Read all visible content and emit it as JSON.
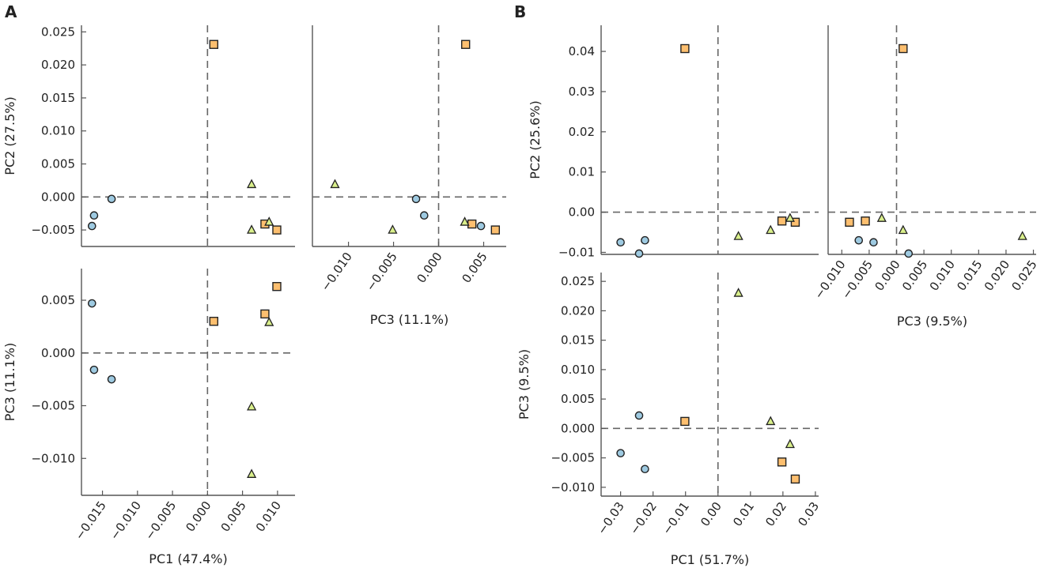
{
  "figure": {
    "panel_letters": [
      "A",
      "B"
    ]
  },
  "colors": {
    "circle_fill": "#9ecae1",
    "square_fill": "#fdbf6f",
    "triangle_fill": "#d9ef8b",
    "marker_edge": "#222222",
    "axis": "#555555",
    "zero_line": "#666666"
  },
  "chart_data": [
    {
      "id": "A1",
      "panel": "A",
      "type": "scatter",
      "title": "",
      "xlabel": "",
      "ylabel": "PC2 (27.5%)",
      "xlim": [
        -0.018,
        0.0125
      ],
      "ylim": [
        -0.0075,
        0.026
      ],
      "xticks": [],
      "xtick_labels": [],
      "yticks": [
        -0.005,
        0.0,
        0.005,
        0.01,
        0.015,
        0.02,
        0.025
      ],
      "ytick_labels": [
        "-0.005",
        "0.000",
        "0.005",
        "0.010",
        "0.015",
        "0.020",
        "0.025"
      ],
      "grid": false,
      "legend": "none",
      "series": [
        {
          "name": "circle",
          "marker": "circle",
          "points": [
            [
              -0.0137,
              -0.0003
            ],
            [
              -0.0162,
              -0.0028
            ],
            [
              -0.0165,
              -0.0044
            ]
          ]
        },
        {
          "name": "square",
          "marker": "square",
          "points": [
            [
              0.0009,
              0.0231
            ],
            [
              0.0082,
              -0.0041
            ],
            [
              0.0099,
              -0.005
            ]
          ]
        },
        {
          "name": "triangle",
          "marker": "triangle",
          "points": [
            [
              0.0063,
              0.0019
            ],
            [
              0.0063,
              -0.005
            ],
            [
              0.0088,
              -0.0038
            ]
          ]
        }
      ]
    },
    {
      "id": "A2",
      "panel": "A",
      "type": "scatter",
      "title": "",
      "xlabel": "PC3 (11.1%)",
      "ylabel": "",
      "xlim": [
        -0.014,
        0.0075
      ],
      "ylim": [
        -0.0075,
        0.026
      ],
      "xticks": [
        -0.01,
        -0.005,
        0.0,
        0.005
      ],
      "xtick_labels": [
        "-0.010",
        "-0.005",
        "0.000",
        "0.005"
      ],
      "yticks": [],
      "ytick_labels": [],
      "grid": false,
      "legend": "none",
      "series": [
        {
          "name": "circle",
          "marker": "circle",
          "points": [
            [
              -0.0025,
              -0.0003
            ],
            [
              -0.0016,
              -0.0028
            ],
            [
              0.0047,
              -0.0044
            ]
          ]
        },
        {
          "name": "square",
          "marker": "square",
          "points": [
            [
              0.003,
              0.0231
            ],
            [
              0.0037,
              -0.0041
            ],
            [
              0.0063,
              -0.005
            ]
          ]
        },
        {
          "name": "triangle",
          "marker": "triangle",
          "points": [
            [
              -0.0115,
              0.0019
            ],
            [
              -0.0051,
              -0.005
            ],
            [
              0.0029,
              -0.0038
            ]
          ]
        }
      ]
    },
    {
      "id": "A3",
      "panel": "A",
      "type": "scatter",
      "title": "",
      "xlabel": "PC1 (47.4%)",
      "ylabel": "PC3 (11.1%)",
      "xlim": [
        -0.018,
        0.0125
      ],
      "ylim": [
        -0.0135,
        0.008
      ],
      "xticks": [
        -0.015,
        -0.01,
        -0.005,
        0.0,
        0.005,
        0.01
      ],
      "xtick_labels": [
        "-0.015",
        "-0.010",
        "-0.005",
        "0.000",
        "0.005",
        "0.010"
      ],
      "yticks": [
        -0.01,
        -0.005,
        0.0,
        0.005
      ],
      "ytick_labels": [
        "-0.010",
        "-0.005",
        "0.000",
        "0.005"
      ],
      "grid": false,
      "legend": "none",
      "series": [
        {
          "name": "circle",
          "marker": "circle",
          "points": [
            [
              -0.0165,
              0.0047
            ],
            [
              -0.0162,
              -0.0016
            ],
            [
              -0.0137,
              -0.0025
            ]
          ]
        },
        {
          "name": "square",
          "marker": "square",
          "points": [
            [
              0.0009,
              0.003
            ],
            [
              0.0082,
              0.0037
            ],
            [
              0.0099,
              0.0063
            ]
          ]
        },
        {
          "name": "triangle",
          "marker": "triangle",
          "points": [
            [
              0.0088,
              0.0029
            ],
            [
              0.0063,
              -0.0051
            ],
            [
              0.0063,
              -0.0115
            ]
          ]
        }
      ]
    },
    {
      "id": "B1",
      "panel": "B",
      "type": "scatter",
      "title": "",
      "xlabel": "",
      "ylabel": "PC2 (25.6%)",
      "xlim": [
        -0.036,
        0.031
      ],
      "ylim": [
        -0.0105,
        0.0465
      ],
      "xticks": [],
      "xtick_labels": [],
      "yticks": [
        -0.01,
        0.0,
        0.01,
        0.02,
        0.03,
        0.04
      ],
      "ytick_labels": [
        "-0.01",
        "0.00",
        "0.01",
        "0.02",
        "0.03",
        "0.04"
      ],
      "grid": false,
      "legend": "none",
      "series": [
        {
          "name": "circle",
          "marker": "circle",
          "points": [
            [
              -0.03,
              -0.0075
            ],
            [
              -0.0225,
              -0.007
            ],
            [
              -0.0243,
              -0.0103
            ]
          ]
        },
        {
          "name": "square",
          "marker": "square",
          "points": [
            [
              -0.0102,
              0.0407
            ],
            [
              0.0197,
              -0.0022
            ],
            [
              0.0238,
              -0.0025
            ]
          ]
        },
        {
          "name": "triangle",
          "marker": "triangle",
          "points": [
            [
              0.0063,
              -0.006
            ],
            [
              0.0162,
              -0.0045
            ],
            [
              0.0222,
              -0.0015
            ]
          ]
        }
      ]
    },
    {
      "id": "B2",
      "panel": "B",
      "type": "scatter",
      "title": "",
      "xlabel": "PC3 (9.5%)",
      "ylabel": "",
      "xlim": [
        -0.0125,
        0.0255
      ],
      "ylim": [
        -0.0105,
        0.0465
      ],
      "xticks": [
        -0.01,
        -0.005,
        0.0,
        0.005,
        0.01,
        0.015,
        0.02,
        0.025
      ],
      "xtick_labels": [
        "-0.010",
        "-0.005",
        "0.000",
        "0.005",
        "0.010",
        "0.015",
        "0.020",
        "0.025"
      ],
      "yticks": [],
      "ytick_labels": [],
      "grid": false,
      "legend": "none",
      "series": [
        {
          "name": "circle",
          "marker": "circle",
          "points": [
            [
              -0.0069,
              -0.007
            ],
            [
              -0.0042,
              -0.0075
            ],
            [
              0.0022,
              -0.0103
            ]
          ]
        },
        {
          "name": "square",
          "marker": "square",
          "points": [
            [
              0.0012,
              0.0407
            ],
            [
              -0.0057,
              -0.0022
            ],
            [
              -0.0086,
              -0.0025
            ]
          ]
        },
        {
          "name": "triangle",
          "marker": "triangle",
          "points": [
            [
              0.023,
              -0.006
            ],
            [
              0.0012,
              -0.0045
            ],
            [
              -0.0027,
              -0.0015
            ]
          ]
        }
      ]
    },
    {
      "id": "B3",
      "panel": "B",
      "type": "scatter",
      "title": "",
      "xlabel": "PC1 (51.7%)",
      "ylabel": "PC3 (9.5%)",
      "xlim": [
        -0.036,
        0.031
      ],
      "ylim": [
        -0.0115,
        0.0265
      ],
      "xticks": [
        -0.03,
        -0.02,
        -0.01,
        0.0,
        0.01,
        0.02,
        0.03
      ],
      "xtick_labels": [
        "-0.03",
        "-0.02",
        "-0.01",
        "0.00",
        "0.01",
        "0.02",
        "0.03"
      ],
      "yticks": [
        -0.01,
        -0.005,
        0.0,
        0.005,
        0.01,
        0.015,
        0.02,
        0.025
      ],
      "ytick_labels": [
        "-0.010",
        "-0.005",
        "0.000",
        "0.005",
        "0.010",
        "0.015",
        "0.020",
        "0.025"
      ],
      "grid": false,
      "legend": "none",
      "series": [
        {
          "name": "circle",
          "marker": "circle",
          "points": [
            [
              -0.03,
              -0.0042
            ],
            [
              -0.0243,
              0.0022
            ],
            [
              -0.0225,
              -0.0069
            ]
          ]
        },
        {
          "name": "square",
          "marker": "square",
          "points": [
            [
              -0.0102,
              0.0012
            ],
            [
              0.0197,
              -0.0057
            ],
            [
              0.0238,
              -0.0086
            ]
          ]
        },
        {
          "name": "triangle",
          "marker": "triangle",
          "points": [
            [
              0.0063,
              0.023
            ],
            [
              0.0162,
              0.0012
            ],
            [
              0.0222,
              -0.0027
            ]
          ]
        }
      ]
    }
  ]
}
